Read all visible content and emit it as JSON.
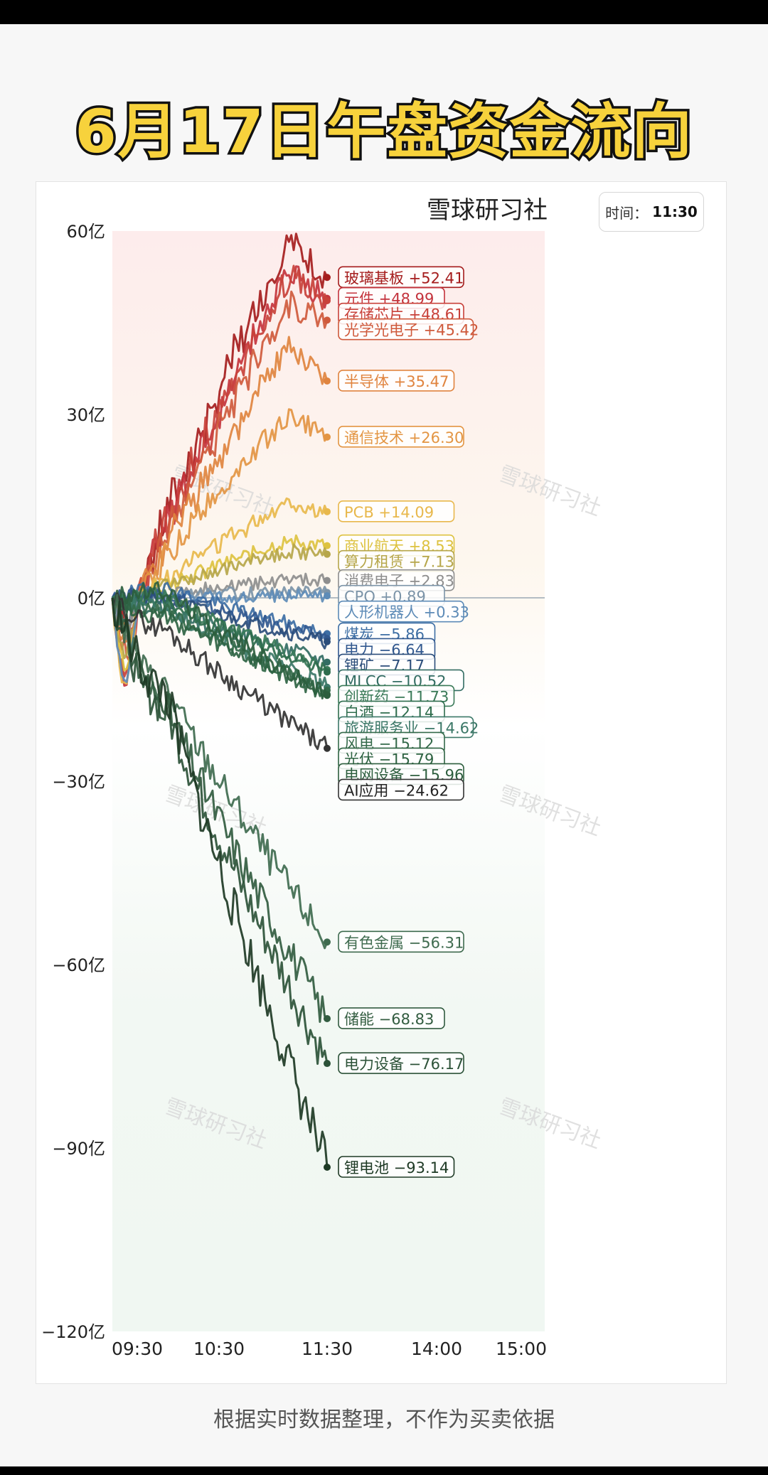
{
  "title": "6月17日午盘资金流向",
  "brand": "雪球研习社",
  "time_label": "时间：",
  "time_value": "11:30",
  "footer": "根据实时数据整理，不作为买卖依据",
  "watermark": "雪球研习社",
  "chart_data": {
    "type": "line",
    "title": "6月17日午盘资金流向",
    "xlabel": "",
    "ylabel": "",
    "x_ticks": [
      "09:30",
      "10:30",
      "11:30",
      "14:00",
      "15:00"
    ],
    "y_ticks": [
      "60亿",
      "30亿",
      "0亿",
      "−30亿",
      "−60亿",
      "−90亿",
      "−120亿"
    ],
    "ylim": [
      -120,
      60
    ],
    "y_unit": "亿",
    "grid": false,
    "series": [
      {
        "name": "玻璃基板",
        "label": "玻璃基板  +52.41",
        "value": 52.41,
        "color": "#a51d1d"
      },
      {
        "name": "元件",
        "label": "元件  +48.99",
        "value": 48.99,
        "color": "#c4343d"
      },
      {
        "name": "存储芯片",
        "label": "存储芯片  +48.61",
        "value": 48.61,
        "color": "#c8413a"
      },
      {
        "name": "光学光电子",
        "label": "光学光电子  +45.42",
        "value": 45.42,
        "color": "#cf5a3c"
      },
      {
        "name": "半导体",
        "label": "半导体  +35.47",
        "value": 35.47,
        "color": "#e0843f"
      },
      {
        "name": "通信技术",
        "label": "通信技术  +26.30",
        "value": 26.3,
        "color": "#e39543"
      },
      {
        "name": "PCB",
        "label": "PCB  +14.09",
        "value": 14.09,
        "color": "#e8b84c"
      },
      {
        "name": "商业航天",
        "label": "商业航天  +8.53",
        "value": 8.53,
        "color": "#ddc240"
      },
      {
        "name": "算力租赁",
        "label": "算力租赁  +7.13",
        "value": 7.13,
        "color": "#b6a64a"
      },
      {
        "name": "消费电子",
        "label": "消费电子  +2.83",
        "value": 2.83,
        "color": "#8e8e8e"
      },
      {
        "name": "CPO",
        "label": "CPO  +0.89",
        "value": 0.89,
        "color": "#7c94a8"
      },
      {
        "name": "人形机器人",
        "label": "人形机器人  +0.33",
        "value": 0.33,
        "color": "#5d8bb7"
      },
      {
        "name": "煤炭",
        "label": "煤炭  −5.86",
        "value": -5.86,
        "color": "#3d6ea4"
      },
      {
        "name": "电力",
        "label": "电力  −6.64",
        "value": -6.64,
        "color": "#31588f"
      },
      {
        "name": "锂矿",
        "label": "锂矿  −7.17",
        "value": -7.17,
        "color": "#2b4d7a"
      },
      {
        "name": "MLCC",
        "label": "MLCC  −10.52",
        "value": -10.52,
        "color": "#336d63"
      },
      {
        "name": "创新药",
        "label": "创新药  −11.73",
        "value": -11.73,
        "color": "#3a7a58"
      },
      {
        "name": "白酒",
        "label": "白酒  −12.14",
        "value": -12.14,
        "color": "#2f6d4d"
      },
      {
        "name": "旅游服务业",
        "label": "旅游服务业  −14.62",
        "value": -14.62,
        "color": "#3c7868"
      },
      {
        "name": "风电",
        "label": "风电  −15.12",
        "value": -15.12,
        "color": "#346a4a"
      },
      {
        "name": "光伏",
        "label": "光伏  −15.79",
        "value": -15.79,
        "color": "#2e6342"
      },
      {
        "name": "电网设备",
        "label": "电网设备  −15.96",
        "value": -15.96,
        "color": "#2d5e3e"
      },
      {
        "name": "AI应用",
        "label": "AI应用  −24.62",
        "value": -24.62,
        "color": "#333333"
      },
      {
        "name": "有色金属",
        "label": "有色金属  −56.31",
        "value": -56.31,
        "color": "#3f6b4f"
      },
      {
        "name": "储能",
        "label": "储能  −68.83",
        "value": -68.83,
        "color": "#325c40"
      },
      {
        "name": "电力设备",
        "label": "电力设备  −76.17",
        "value": -76.17,
        "color": "#2c5238"
      },
      {
        "name": "锂电池",
        "label": "锂电池  −93.14",
        "value": -93.14,
        "color": "#1e3a25"
      }
    ]
  }
}
